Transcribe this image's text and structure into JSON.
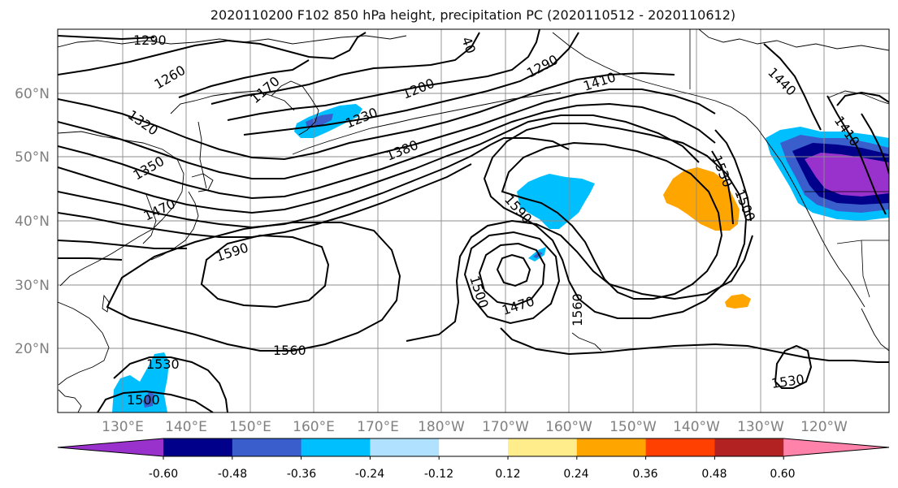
{
  "title": "2020110200 F102 850 hPa height, precipitation PC (2020110512 - 2020110612)",
  "map": {
    "lat_labels": [
      "60°N",
      "50°N",
      "40°N",
      "30°N",
      "20°N"
    ],
    "lon_labels": [
      "130°E",
      "140°E",
      "150°E",
      "160°E",
      "170°E",
      "180°W",
      "170°W",
      "160°W",
      "150°W",
      "140°W",
      "130°W",
      "120°W"
    ],
    "contour_labels": [
      "1290",
      "1260",
      "1170",
      "1200",
      "1230",
      "1290",
      "1410",
      "1440",
      "1410",
      "1320",
      "1350",
      "1380",
      "1470",
      "1590",
      "1590",
      "1530",
      "1500",
      "1500",
      "1470",
      "1560",
      "1560",
      "1530",
      "1500",
      "1530",
      "40"
    ],
    "grid": true
  },
  "colorbar": {
    "ticks": [
      "-0.60",
      "-0.48",
      "-0.36",
      "-0.24",
      "-0.12",
      "0.12",
      "0.24",
      "0.36",
      "0.48",
      "0.60"
    ],
    "colors": [
      "#9932cc",
      "#00008b",
      "#3a5fcd",
      "#00bfff",
      "#b0e2ff",
      "#ffffff",
      "#ffec8b",
      "#ffa500",
      "#ff4000",
      "#b22222",
      "#ff82ab"
    ]
  }
}
